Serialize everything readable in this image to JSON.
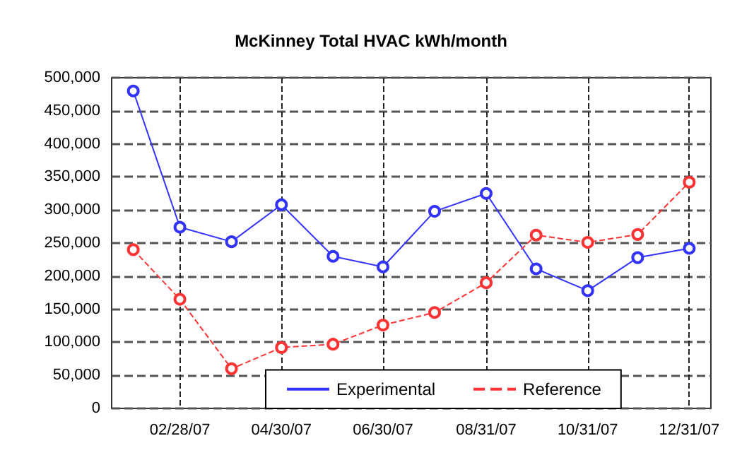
{
  "chart_data": {
    "type": "line",
    "title": "McKinney Total HVAC kWh/month",
    "x": [
      "2007-01-31",
      "2007-02-28",
      "2007-03-31",
      "2007-04-30",
      "2007-05-31",
      "2007-06-30",
      "2007-07-31",
      "2007-08-31",
      "2007-09-30",
      "2007-10-31",
      "2007-11-30",
      "2007-12-31"
    ],
    "series": [
      {
        "name": "Experimental",
        "color": "#3333ff",
        "line_style": "solid",
        "values": [
          480000,
          274000,
          252000,
          308000,
          230000,
          214000,
          298000,
          325000,
          211000,
          178000,
          228000,
          242000
        ]
      },
      {
        "name": "Reference",
        "color": "#ff3333",
        "line_style": "dashed",
        "values": [
          240000,
          165000,
          60000,
          92000,
          97000,
          126000,
          145000,
          190000,
          262000,
          251000,
          263000,
          342000
        ]
      }
    ],
    "xlim": [
      "2007-01-18",
      "2008-01-13"
    ],
    "xticks": [
      {
        "value": "2007-02-28",
        "label": "02/28/07"
      },
      {
        "value": "2007-04-30",
        "label": "04/30/07"
      },
      {
        "value": "2007-06-30",
        "label": "06/30/07"
      },
      {
        "value": "2007-08-31",
        "label": "08/31/07"
      },
      {
        "value": "2007-10-31",
        "label": "10/31/07"
      },
      {
        "value": "2007-12-31",
        "label": "12/31/07"
      }
    ],
    "ylim": [
      0,
      500000
    ],
    "yticks": [
      0,
      {
        "value": 50000,
        "label": "50,000"
      },
      {
        "value": 100000,
        "label": "100,000"
      },
      {
        "value": 150000,
        "label": "150,000"
      },
      {
        "value": 200000,
        "label": "200,000"
      },
      {
        "value": 250000,
        "label": "250,000"
      },
      {
        "value": 300000,
        "label": "300,000"
      },
      {
        "value": 350000,
        "label": "350,000"
      },
      {
        "value": 400000,
        "label": "400,000"
      },
      {
        "value": 450000,
        "label": "450,000"
      },
      {
        "value": 500000,
        "label": "500,000"
      }
    ],
    "grid": true,
    "legend": "bottom",
    "marker": "circle"
  }
}
